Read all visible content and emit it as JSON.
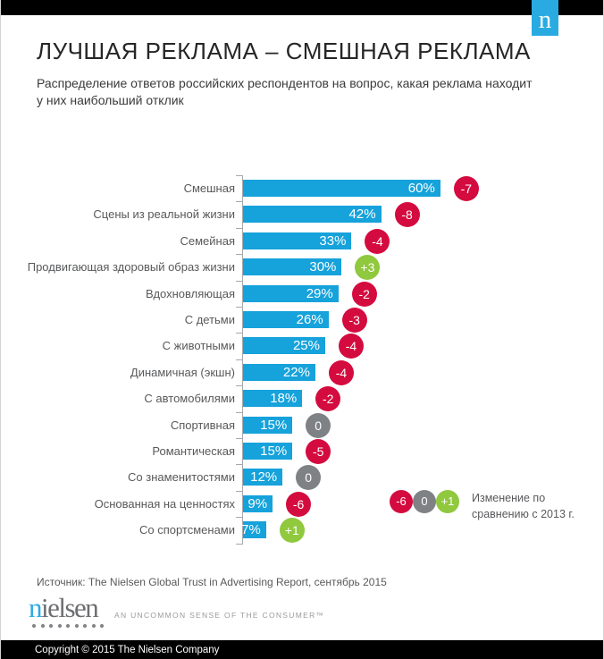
{
  "header": {
    "logo_letter": "n",
    "title": "ЛУЧШАЯ РЕКЛАМА – СМЕШНАЯ РЕКЛАМА",
    "subtitle": "Распределение ответов российских респондентов на вопрос, какая реклама находит у них наибольший отклик"
  },
  "chart_data": {
    "type": "bar",
    "orientation": "horizontal",
    "title": "ЛУЧШАЯ РЕКЛАМА – СМЕШНАЯ РЕКЛАМА",
    "value_suffix": "%",
    "xlim": [
      0,
      60
    ],
    "grid": false,
    "categories": [
      "Смешная",
      "Сцены из реальной жизни",
      "Семейная",
      "Продвигающая здоровый образ жизни",
      "Вдохновляющая",
      "С детьми",
      "С животными",
      "Динамичная (экшн)",
      "С автомобилями",
      "Спортивная",
      "Романтическая",
      "Со знаменитостями",
      "Основанная на ценностях",
      "Со спортсменами"
    ],
    "values": [
      60,
      42,
      33,
      30,
      29,
      26,
      25,
      22,
      18,
      15,
      15,
      12,
      9,
      7
    ],
    "changes_vs_2013": [
      "-7",
      "-8",
      "-4",
      "+3",
      "-2",
      "-3",
      "-4",
      "-4",
      "-2",
      "0",
      "-5",
      "0",
      "-6",
      "+1"
    ],
    "legend": {
      "samples": [
        "-6",
        "0",
        "+1"
      ],
      "label": "Изменение по сравнению с 2013 г.",
      "position": "right"
    }
  },
  "colors": {
    "bar_blue": "#16a2db",
    "badge_negative": "#d40b3e",
    "badge_zero": "#7f8285",
    "badge_positive": "#90c83e",
    "brand_blue": "#29abe2"
  },
  "source": {
    "text": "Источник: The Nielsen Global Trust in Advertising Report, сентябрь 2015"
  },
  "brand": {
    "wordmark": "nielsen",
    "dots_count": 9,
    "tagline": "AN UNCOMMON SENSE OF THE CONSUMER™"
  },
  "footer": {
    "copyright": "Copyright © 2015 The Nielsen Company"
  }
}
